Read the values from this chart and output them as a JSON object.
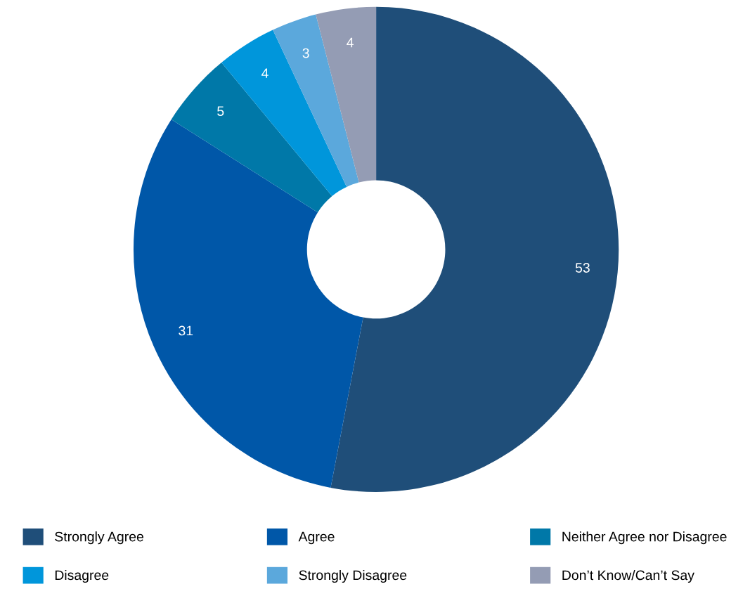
{
  "chart_data": {
    "type": "donut",
    "categories": [
      "Strongly Agree",
      "Agree",
      "Neither Agree nor Disagree",
      "Disagree",
      "Strongly Disagree",
      "Don’t Know/Can’t Say"
    ],
    "values": [
      53,
      31,
      5,
      4,
      3,
      4
    ],
    "colors": [
      "#1f4e79",
      "#0057a8",
      "#0078a8",
      "#0096db",
      "#5ba8dc",
      "#949cb4"
    ],
    "data_labels": true,
    "legend": "bottom"
  }
}
